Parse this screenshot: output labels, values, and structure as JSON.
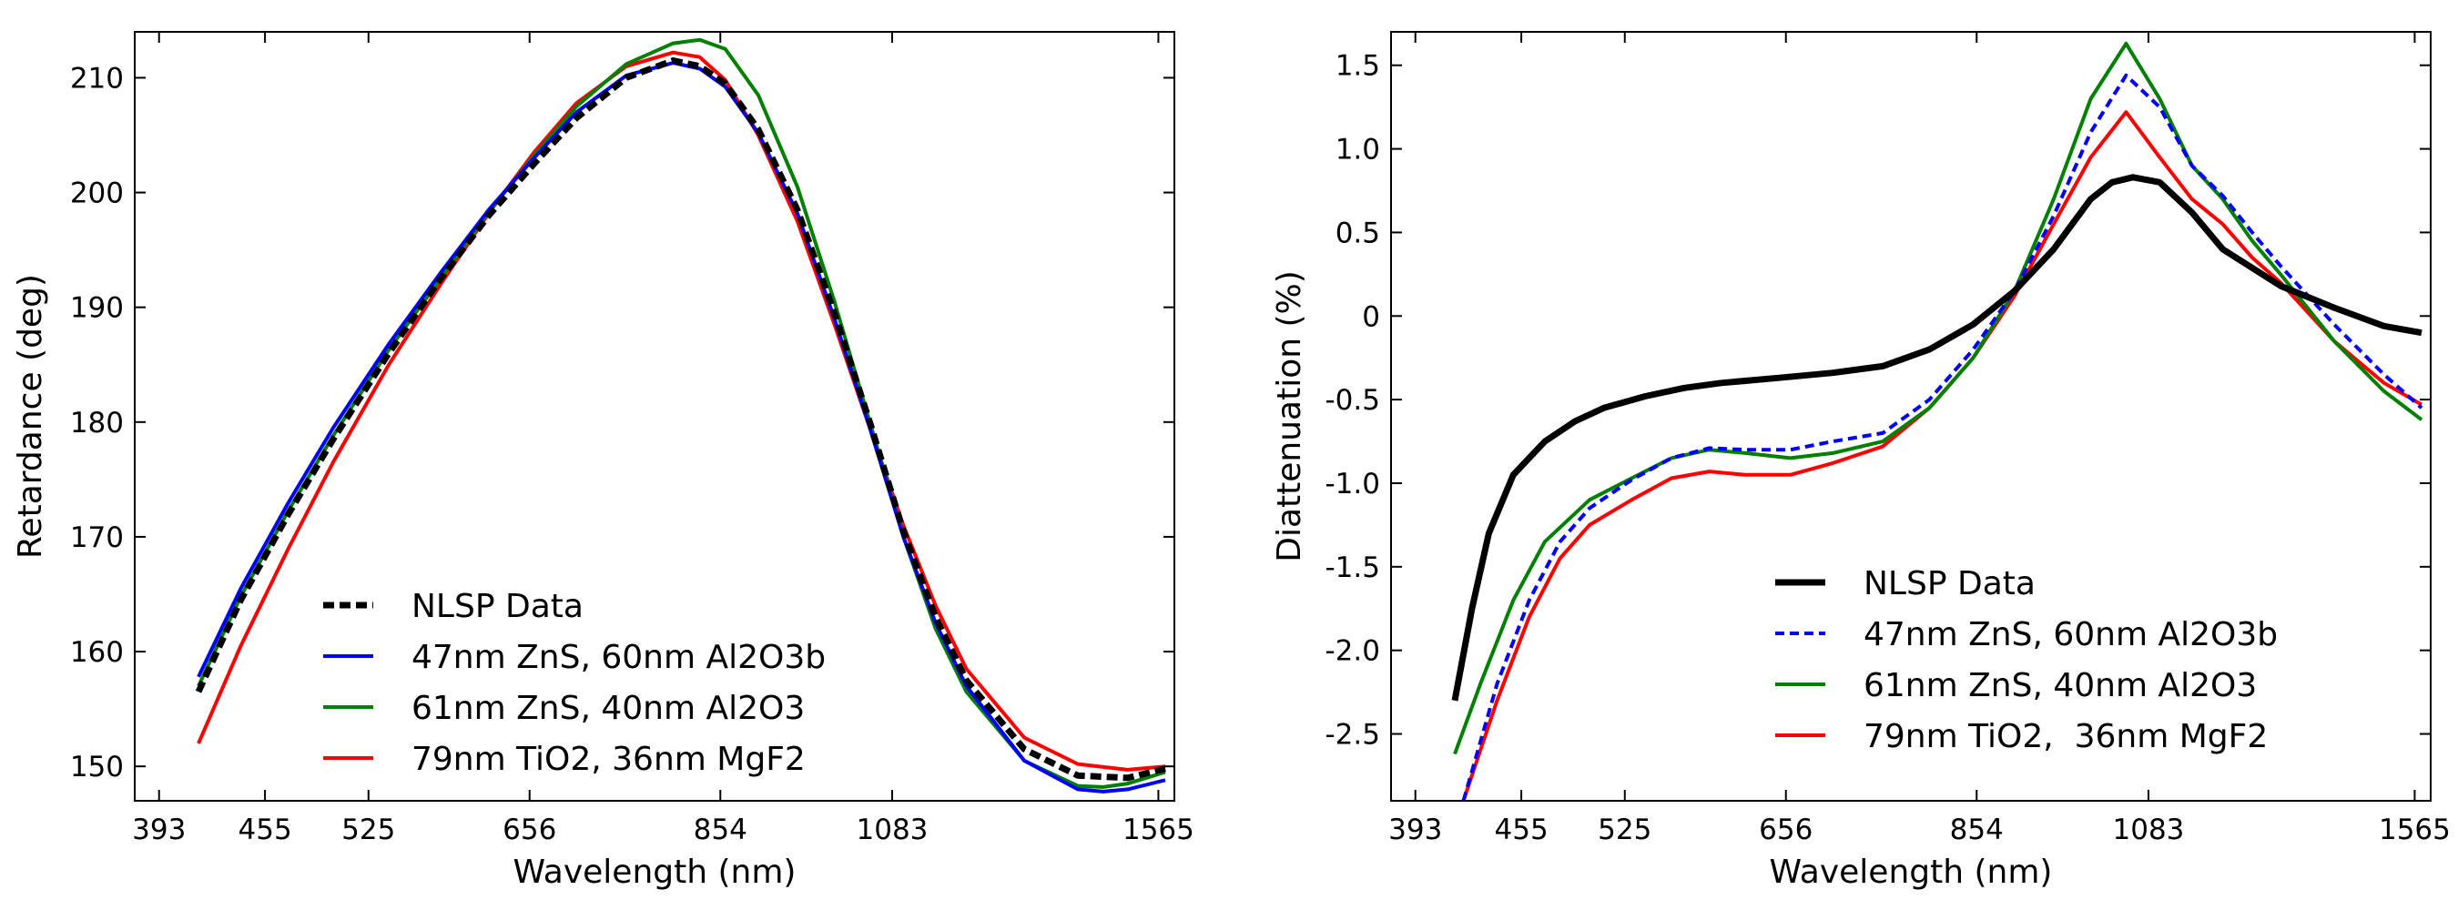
{
  "chart_data": [
    {
      "type": "line",
      "xlabel": "Wavelength (nm)",
      "ylabel": "Retardance (deg)",
      "xscale": "log",
      "xlim": [
        380,
        1600
      ],
      "ylim": [
        147,
        214
      ],
      "xticks": [
        393,
        455,
        525,
        656,
        854,
        1083,
        1565
      ],
      "xtick_labels": [
        "393",
        "455",
        "525",
        "656",
        "854",
        "1083",
        "1565"
      ],
      "yticks": [
        150,
        160,
        170,
        180,
        190,
        200,
        210
      ],
      "ytick_labels": [
        "150",
        "160",
        "170",
        "180",
        "190",
        "200",
        "210"
      ],
      "legend_position": "lower-left",
      "series": [
        {
          "name": "NLSP Data",
          "color": "#000000",
          "style": "dashed-thick",
          "x": [
            415,
            440,
            470,
            500,
            540,
            580,
            620,
            660,
            700,
            750,
            800,
            830,
            860,
            900,
            950,
            1000,
            1050,
            1100,
            1150,
            1200,
            1300,
            1400,
            1500,
            1580
          ],
          "y": [
            156.5,
            164.5,
            172.0,
            178.5,
            186.0,
            192.5,
            198.0,
            202.5,
            206.5,
            210.0,
            211.5,
            211.0,
            209.5,
            205.5,
            198.5,
            189.5,
            180.0,
            170.5,
            163.0,
            157.5,
            151.5,
            149.2,
            149.0,
            149.8
          ]
        },
        {
          "name": "47nm ZnS, 60nm Al2O3b",
          "color": "#0000ff",
          "style": "solid",
          "x": [
            415,
            440,
            470,
            500,
            540,
            580,
            620,
            660,
            700,
            750,
            800,
            830,
            860,
            900,
            950,
            1000,
            1050,
            1100,
            1150,
            1200,
            1300,
            1400,
            1450,
            1500,
            1580
          ],
          "y": [
            157.8,
            165.5,
            173.0,
            179.5,
            186.8,
            193.0,
            198.5,
            203.0,
            207.0,
            210.2,
            211.3,
            210.8,
            209.2,
            205.2,
            198.2,
            189.0,
            179.5,
            170.0,
            162.5,
            157.0,
            150.5,
            148.0,
            147.8,
            148.0,
            148.8
          ]
        },
        {
          "name": "61nm ZnS, 40nm Al2O3",
          "color": "#008000",
          "style": "solid",
          "x": [
            415,
            440,
            470,
            500,
            540,
            580,
            620,
            660,
            700,
            750,
            800,
            830,
            860,
            900,
            950,
            1000,
            1050,
            1100,
            1150,
            1200,
            1300,
            1400,
            1450,
            1500,
            1580
          ],
          "y": [
            157.0,
            164.8,
            172.3,
            178.8,
            186.3,
            192.5,
            198.3,
            203.2,
            207.5,
            211.2,
            213.0,
            213.3,
            212.5,
            208.5,
            200.5,
            190.5,
            180.0,
            170.0,
            162.0,
            156.5,
            150.5,
            148.3,
            148.2,
            148.5,
            149.5
          ]
        },
        {
          "name": "79nm TiO2, 36nm MgF2",
          "color": "#ff0000",
          "style": "solid",
          "x": [
            415,
            440,
            470,
            500,
            540,
            580,
            620,
            660,
            700,
            750,
            800,
            830,
            860,
            900,
            950,
            1000,
            1050,
            1100,
            1150,
            1200,
            1300,
            1400,
            1500,
            1580
          ],
          "y": [
            152.0,
            160.5,
            169.0,
            176.5,
            185.0,
            192.0,
            198.2,
            203.5,
            207.8,
            211.0,
            212.2,
            211.8,
            209.8,
            205.0,
            197.5,
            188.5,
            179.5,
            171.0,
            164.0,
            158.5,
            152.5,
            150.2,
            149.7,
            150.0
          ]
        }
      ]
    },
    {
      "type": "line",
      "xlabel": "Wavelength (nm)",
      "ylabel": "Diattenuation (%)",
      "xscale": "log",
      "xlim": [
        380,
        1600
      ],
      "ylim": [
        -2.9,
        1.7
      ],
      "xticks": [
        393,
        455,
        525,
        656,
        854,
        1083,
        1565
      ],
      "xtick_labels": [
        "393",
        "455",
        "525",
        "656",
        "854",
        "1083",
        "1565"
      ],
      "yticks": [
        -2.5,
        -2.0,
        -1.5,
        -1.0,
        -0.5,
        0,
        0.5,
        1.0,
        1.5
      ],
      "ytick_labels": [
        "-2.5",
        "-2.0",
        "-1.5",
        "-1.0",
        "-0.5",
        "0",
        "0.5",
        "1.0",
        "1.5"
      ],
      "legend_position": "lower-center",
      "series": [
        {
          "name": "NLSP Data",
          "color": "#000000",
          "style": "solid-thick",
          "x": [
            415,
            425,
            435,
            450,
            470,
            490,
            510,
            540,
            570,
            600,
            650,
            700,
            750,
            800,
            850,
            900,
            950,
            1000,
            1030,
            1060,
            1100,
            1150,
            1200,
            1300,
            1400,
            1500,
            1580
          ],
          "y": [
            -2.3,
            -1.75,
            -1.3,
            -0.95,
            -0.75,
            -0.63,
            -0.55,
            -0.48,
            -0.43,
            -0.4,
            -0.37,
            -0.34,
            -0.3,
            -0.2,
            -0.05,
            0.15,
            0.4,
            0.7,
            0.8,
            0.83,
            0.8,
            0.62,
            0.4,
            0.18,
            0.05,
            -0.06,
            -0.1
          ]
        },
        {
          "name": "47nm ZnS, 60nm Al2O3b",
          "color": "#0000ff",
          "style": "dashed",
          "x": [
            420,
            440,
            460,
            480,
            500,
            530,
            560,
            590,
            620,
            660,
            700,
            750,
            800,
            850,
            900,
            950,
            1000,
            1050,
            1100,
            1150,
            1200,
            1250,
            1300,
            1400,
            1500,
            1580
          ],
          "y": [
            -2.9,
            -2.2,
            -1.7,
            -1.35,
            -1.15,
            -0.98,
            -0.85,
            -0.79,
            -0.8,
            -0.8,
            -0.75,
            -0.7,
            -0.5,
            -0.2,
            0.15,
            0.6,
            1.1,
            1.44,
            1.25,
            0.9,
            0.72,
            0.5,
            0.3,
            -0.05,
            -0.35,
            -0.55
          ]
        },
        {
          "name": "61nm ZnS, 40nm Al2O3",
          "color": "#008000",
          "style": "solid",
          "x": [
            415,
            430,
            450,
            470,
            500,
            530,
            560,
            590,
            620,
            660,
            700,
            750,
            800,
            850,
            900,
            950,
            1000,
            1050,
            1100,
            1150,
            1200,
            1250,
            1300,
            1400,
            1500,
            1580
          ],
          "y": [
            -2.62,
            -2.2,
            -1.7,
            -1.35,
            -1.1,
            -0.97,
            -0.85,
            -0.8,
            -0.82,
            -0.85,
            -0.82,
            -0.75,
            -0.55,
            -0.25,
            0.15,
            0.7,
            1.3,
            1.63,
            1.3,
            0.9,
            0.7,
            0.45,
            0.25,
            -0.15,
            -0.45,
            -0.62
          ]
        },
        {
          "name": "79nm TiO2,  36nm MgF2",
          "color": "#ff0000",
          "style": "solid",
          "x": [
            420,
            440,
            460,
            480,
            500,
            530,
            560,
            590,
            620,
            660,
            700,
            750,
            800,
            850,
            900,
            950,
            1000,
            1050,
            1100,
            1150,
            1200,
            1250,
            1300,
            1400,
            1500,
            1580
          ],
          "y": [
            -2.9,
            -2.3,
            -1.8,
            -1.45,
            -1.25,
            -1.1,
            -0.97,
            -0.93,
            -0.95,
            -0.95,
            -0.88,
            -0.78,
            -0.55,
            -0.25,
            0.12,
            0.55,
            0.95,
            1.22,
            0.95,
            0.7,
            0.55,
            0.35,
            0.2,
            -0.15,
            -0.4,
            -0.53
          ]
        }
      ]
    }
  ]
}
